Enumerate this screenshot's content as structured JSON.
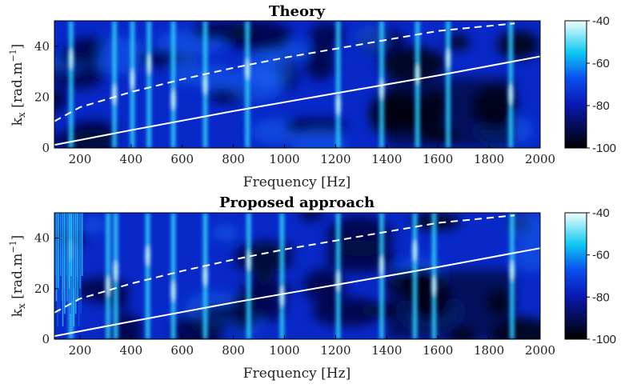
{
  "chart_data": [
    {
      "type": "heatmap",
      "title": "Theory",
      "xlabel": "Frequency [Hz]",
      "ylabel": "k",
      "ylabel_sub": "x",
      "ylabel_unit": "[rad.m",
      "ylabel_sup": "−1",
      "ylabel_close": "]",
      "xlim": [
        100,
        2000
      ],
      "ylim": [
        0,
        50
      ],
      "xticks": [
        200,
        400,
        600,
        800,
        1000,
        1200,
        1400,
        1600,
        1800,
        2000
      ],
      "yticks": [
        0,
        20,
        40
      ],
      "colorbar": {
        "ticks": [
          -40,
          -60,
          -80,
          -100
        ],
        "range": [
          -100,
          -40
        ]
      },
      "resonance_frequencies": [
        165,
        335,
        405,
        470,
        565,
        690,
        855,
        1210,
        1380,
        1520,
        1640,
        1885
      ],
      "curves": [
        {
          "style": "solid",
          "color": "#ffffff",
          "x": [
            100,
            400,
            800,
            1200,
            1600,
            2000
          ],
          "y": [
            1.2,
            7,
            14.5,
            21.5,
            28.5,
            36
          ]
        },
        {
          "style": "dashed",
          "color": "#ffffff",
          "x": [
            100,
            200,
            400,
            600,
            800,
            1000,
            1200,
            1400,
            1600,
            1900
          ],
          "y": [
            10.5,
            16,
            22,
            27,
            31.5,
            35.5,
            39,
            42.5,
            46,
            49
          ]
        }
      ]
    },
    {
      "type": "heatmap",
      "title": "Proposed approach",
      "xlabel": "Frequency [Hz]",
      "ylabel": "k",
      "ylabel_sub": "x",
      "ylabel_unit": "[rad.m",
      "ylabel_sup": "−1",
      "ylabel_close": "]",
      "xlim": [
        100,
        2000
      ],
      "ylim": [
        0,
        50
      ],
      "xticks": [
        200,
        400,
        600,
        800,
        1000,
        1200,
        1400,
        1600,
        1800,
        2000
      ],
      "yticks": [
        0,
        20,
        40
      ],
      "colorbar": {
        "ticks": [
          -40,
          -60,
          -80,
          -100
        ],
        "range": [
          -100,
          -40
        ]
      },
      "resonance_frequencies": [
        165,
        310,
        340,
        465,
        565,
        690,
        860,
        990,
        1210,
        1380,
        1510,
        1585,
        1890
      ],
      "curves": [
        {
          "style": "solid",
          "color": "#ffffff",
          "x": [
            100,
            400,
            800,
            1200,
            1600,
            2000
          ],
          "y": [
            1.2,
            7,
            14.5,
            21.5,
            28.5,
            36
          ]
        },
        {
          "style": "dashed",
          "color": "#ffffff",
          "x": [
            100,
            200,
            400,
            600,
            800,
            1000,
            1200,
            1400,
            1600,
            1900
          ],
          "y": [
            10.5,
            16,
            22,
            27,
            31.5,
            35.5,
            39,
            42.5,
            46,
            49
          ]
        }
      ]
    }
  ]
}
